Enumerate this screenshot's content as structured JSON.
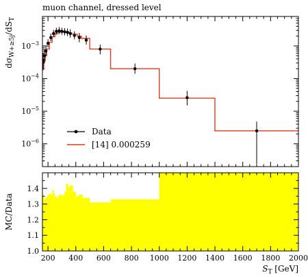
{
  "chart_data": [
    {
      "type": "line",
      "panel": "main",
      "title": "muon channel, dressed level",
      "ylabel": "dσ_{W+≥5j}/dS_T",
      "yscale": "log",
      "ylim": [
        2e-07,
        0.008
      ],
      "xlim": [
        160,
        2000
      ],
      "y_ticks": [
        {
          "value": 0.001,
          "mant": "10",
          "exp": "−3"
        },
        {
          "value": 0.0001,
          "mant": "10",
          "exp": "−4"
        },
        {
          "value": 1e-05,
          "mant": "10",
          "exp": "−5"
        },
        {
          "value": 1e-06,
          "mant": "10",
          "exp": "−6"
        }
      ],
      "legend_position": "lower-left",
      "legend": [
        {
          "label": "Data",
          "style": "marker"
        },
        {
          "label": "[14] 0.000259",
          "style": "line"
        }
      ],
      "series": [
        {
          "name": "Data",
          "style": "points-with-errors",
          "points": [
            {
              "x": 165,
              "y": 0.00035,
              "lo": 0.00018,
              "hi": 0.0006
            },
            {
              "x": 175,
              "y": 0.0005,
              "lo": 0.0003,
              "hi": 0.0008
            },
            {
              "x": 185,
              "y": 0.0007,
              "lo": 0.0005,
              "hi": 0.001
            },
            {
              "x": 200,
              "y": 0.0012,
              "lo": 0.0009,
              "hi": 0.0016
            },
            {
              "x": 220,
              "y": 0.0018,
              "lo": 0.0014,
              "hi": 0.0024
            },
            {
              "x": 240,
              "y": 0.0024,
              "lo": 0.0019,
              "hi": 0.0031
            },
            {
              "x": 260,
              "y": 0.0028,
              "lo": 0.0022,
              "hi": 0.0036
            },
            {
              "x": 280,
              "y": 0.0029,
              "lo": 0.0023,
              "hi": 0.0038
            },
            {
              "x": 300,
              "y": 0.0028,
              "lo": 0.0022,
              "hi": 0.0036
            },
            {
              "x": 320,
              "y": 0.0027,
              "lo": 0.0021,
              "hi": 0.0035
            },
            {
              "x": 340,
              "y": 0.0026,
              "lo": 0.002,
              "hi": 0.0034
            },
            {
              "x": 360,
              "y": 0.0024,
              "lo": 0.0018,
              "hi": 0.0032
            },
            {
              "x": 390,
              "y": 0.0021,
              "lo": 0.0016,
              "hi": 0.0028
            },
            {
              "x": 425,
              "y": 0.0018,
              "lo": 0.0013,
              "hi": 0.0025
            },
            {
              "x": 475,
              "y": 0.0015,
              "lo": 0.0011,
              "hi": 0.0021
            },
            {
              "x": 575,
              "y": 0.0008,
              "lo": 0.00055,
              "hi": 0.0011
            },
            {
              "x": 825,
              "y": 0.0002,
              "lo": 0.00014,
              "hi": 0.00029
            },
            {
              "x": 1200,
              "y": 2.6e-05,
              "lo": 1.5e-05,
              "hi": 4.2e-05
            },
            {
              "x": 1700,
              "y": 2.5e-06,
              "lo": 2.4e-07,
              "hi": 4.8e-06
            }
          ]
        },
        {
          "name": "[14] 0.000259",
          "style": "step",
          "color": "#e03a1e",
          "bins": [
            {
              "lo": 160,
              "hi": 170,
              "y": 0.00022
            },
            {
              "lo": 170,
              "hi": 180,
              "y": 0.00035
            },
            {
              "lo": 180,
              "hi": 190,
              "y": 0.0005
            },
            {
              "lo": 190,
              "hi": 210,
              "y": 0.0008
            },
            {
              "lo": 210,
              "hi": 230,
              "y": 0.0013
            },
            {
              "lo": 230,
              "hi": 250,
              "y": 0.0019
            },
            {
              "lo": 250,
              "hi": 270,
              "y": 0.0024
            },
            {
              "lo": 270,
              "hi": 290,
              "y": 0.0026
            },
            {
              "lo": 290,
              "hi": 310,
              "y": 0.0027
            },
            {
              "lo": 310,
              "hi": 330,
              "y": 0.0027
            },
            {
              "lo": 330,
              "hi": 350,
              "y": 0.0026
            },
            {
              "lo": 350,
              "hi": 370,
              "y": 0.0025
            },
            {
              "lo": 370,
              "hi": 410,
              "y": 0.0023
            },
            {
              "lo": 410,
              "hi": 440,
              "y": 0.002
            },
            {
              "lo": 440,
              "hi": 500,
              "y": 0.0017
            },
            {
              "lo": 500,
              "hi": 650,
              "y": 0.0008
            },
            {
              "lo": 650,
              "hi": 1000,
              "y": 0.0002
            },
            {
              "lo": 1000,
              "hi": 1400,
              "y": 2.5e-05
            },
            {
              "lo": 1400,
              "hi": 2000,
              "y": 2.5e-06
            }
          ]
        }
      ]
    },
    {
      "type": "area",
      "panel": "ratio",
      "xlabel": "S_T [GeV]",
      "ylabel": "MC/Data",
      "ylim": [
        1.0,
        1.5
      ],
      "xlim": [
        160,
        2000
      ],
      "x_ticks": [
        200,
        400,
        600,
        800,
        1000,
        1200,
        1400,
        1600,
        1800,
        2000
      ],
      "y_ticks": [
        "1.0",
        "1.1",
        "1.2",
        "1.3",
        "1.4"
      ],
      "fill_color": "#ffff00",
      "series": [
        {
          "name": "MC/Data uncertainty band",
          "bins": [
            {
              "lo": 160,
              "hi": 170,
              "y": 1.36
            },
            {
              "lo": 170,
              "hi": 180,
              "y": 1.33
            },
            {
              "lo": 180,
              "hi": 190,
              "y": 1.34
            },
            {
              "lo": 190,
              "hi": 200,
              "y": 1.35
            },
            {
              "lo": 200,
              "hi": 210,
              "y": 1.36
            },
            {
              "lo": 210,
              "hi": 220,
              "y": 1.37
            },
            {
              "lo": 220,
              "hi": 230,
              "y": 1.36
            },
            {
              "lo": 230,
              "hi": 240,
              "y": 1.39
            },
            {
              "lo": 240,
              "hi": 250,
              "y": 1.37
            },
            {
              "lo": 250,
              "hi": 260,
              "y": 1.35
            },
            {
              "lo": 260,
              "hi": 270,
              "y": 1.34
            },
            {
              "lo": 270,
              "hi": 280,
              "y": 1.35
            },
            {
              "lo": 280,
              "hi": 290,
              "y": 1.36
            },
            {
              "lo": 290,
              "hi": 300,
              "y": 1.36
            },
            {
              "lo": 300,
              "hi": 310,
              "y": 1.35
            },
            {
              "lo": 310,
              "hi": 320,
              "y": 1.36
            },
            {
              "lo": 320,
              "hi": 330,
              "y": 1.38
            },
            {
              "lo": 330,
              "hi": 345,
              "y": 1.43
            },
            {
              "lo": 345,
              "hi": 360,
              "y": 1.41
            },
            {
              "lo": 360,
              "hi": 380,
              "y": 1.42
            },
            {
              "lo": 380,
              "hi": 400,
              "y": 1.38
            },
            {
              "lo": 400,
              "hi": 420,
              "y": 1.35
            },
            {
              "lo": 420,
              "hi": 450,
              "y": 1.36
            },
            {
              "lo": 450,
              "hi": 500,
              "y": 1.34
            },
            {
              "lo": 500,
              "hi": 650,
              "y": 1.31
            },
            {
              "lo": 650,
              "hi": 1000,
              "y": 1.33
            },
            {
              "lo": 1000,
              "hi": 2000,
              "y": 1.5
            }
          ]
        }
      ]
    }
  ]
}
